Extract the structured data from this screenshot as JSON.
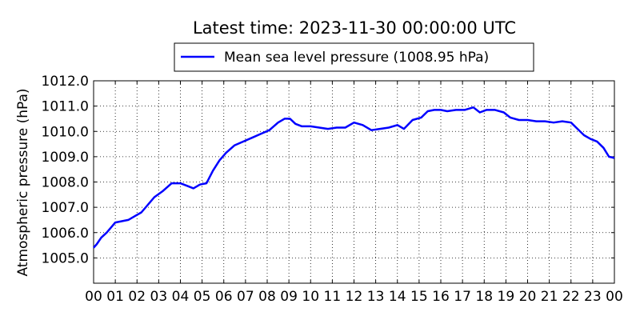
{
  "chart_data": {
    "type": "line",
    "title": "Latest time: 2023-11-30 00:00:00 UTC",
    "xlabel": "",
    "ylabel": "Atmospheric pressure (hPa)",
    "xlim": [
      0,
      24
    ],
    "ylim": [
      1004.0,
      1012.0
    ],
    "x_ticks": [
      "00",
      "01",
      "02",
      "03",
      "04",
      "05",
      "06",
      "07",
      "08",
      "09",
      "10",
      "11",
      "12",
      "13",
      "14",
      "15",
      "16",
      "17",
      "18",
      "19",
      "20",
      "21",
      "22",
      "23",
      "00"
    ],
    "y_ticks": [
      "1005.0",
      "1006.0",
      "1007.0",
      "1008.0",
      "1009.0",
      "1010.0",
      "1011.0",
      "1012.0"
    ],
    "grid": true,
    "legend_position": "top-center (above plot)",
    "series": [
      {
        "name": "Mean sea level pressure (1008.95 hPa)",
        "color": "#0000ff",
        "x": [
          0.0,
          0.15,
          0.35,
          0.6,
          0.85,
          1.0,
          1.3,
          1.6,
          1.9,
          2.2,
          2.5,
          2.8,
          3.2,
          3.6,
          4.0,
          4.3,
          4.6,
          4.9,
          5.2,
          5.5,
          5.8,
          6.1,
          6.5,
          6.9,
          7.3,
          7.7,
          8.1,
          8.5,
          8.8,
          9.05,
          9.3,
          9.6,
          10.0,
          10.4,
          10.8,
          11.2,
          11.6,
          12.0,
          12.4,
          12.8,
          13.2,
          13.6,
          14.0,
          14.3,
          14.7,
          15.1,
          15.4,
          15.7,
          16.0,
          16.3,
          16.7,
          17.1,
          17.5,
          17.8,
          18.1,
          18.5,
          18.9,
          19.2,
          19.6,
          20.0,
          20.4,
          20.8,
          21.2,
          21.6,
          22.0,
          22.3,
          22.6,
          22.9,
          23.2,
          23.5,
          23.75,
          24.0
        ],
        "y": [
          1005.4,
          1005.55,
          1005.8,
          1006.0,
          1006.25,
          1006.4,
          1006.45,
          1006.5,
          1006.65,
          1006.8,
          1007.1,
          1007.4,
          1007.65,
          1007.95,
          1007.95,
          1007.85,
          1007.75,
          1007.9,
          1007.95,
          1008.45,
          1008.85,
          1009.15,
          1009.45,
          1009.6,
          1009.75,
          1009.9,
          1010.05,
          1010.35,
          1010.5,
          1010.5,
          1010.3,
          1010.2,
          1010.2,
          1010.15,
          1010.1,
          1010.15,
          1010.15,
          1010.35,
          1010.25,
          1010.05,
          1010.1,
          1010.15,
          1010.25,
          1010.1,
          1010.45,
          1010.55,
          1010.8,
          1010.85,
          1010.85,
          1010.8,
          1010.85,
          1010.85,
          1010.95,
          1010.75,
          1010.85,
          1010.85,
          1010.75,
          1010.55,
          1010.45,
          1010.45,
          1010.4,
          1010.4,
          1010.35,
          1010.4,
          1010.35,
          1010.1,
          1009.85,
          1009.7,
          1009.6,
          1009.35,
          1009.0,
          1008.95
        ]
      }
    ]
  }
}
